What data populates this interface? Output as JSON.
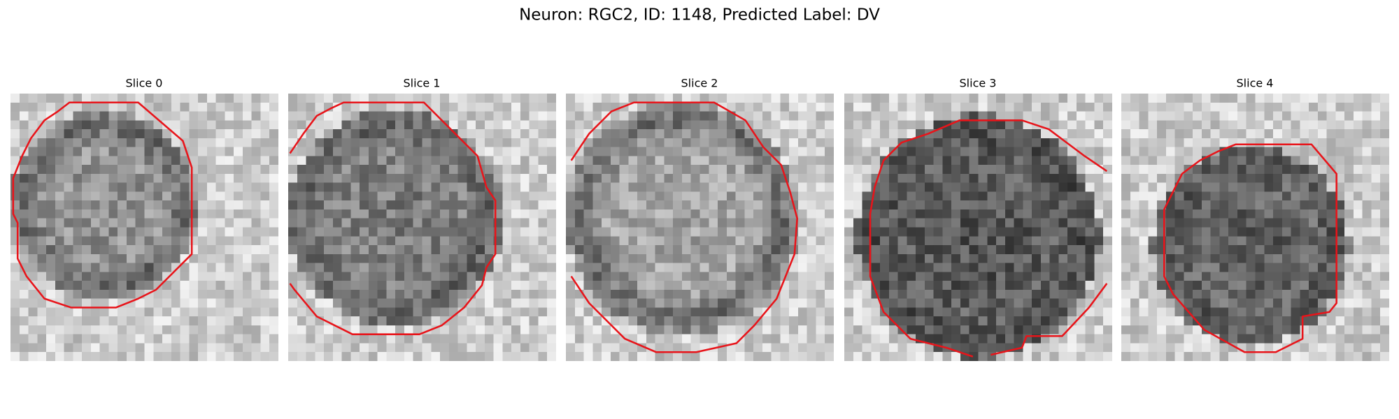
{
  "header": {
    "title": "Neuron: RGC2, ID: 1148, Predicted Label: DV"
  },
  "panels": [
    {
      "title": "Slice 0"
    },
    {
      "title": "Slice 1"
    },
    {
      "title": "Slice 2"
    },
    {
      "title": "Slice 3"
    },
    {
      "title": "Slice 4"
    }
  ]
}
